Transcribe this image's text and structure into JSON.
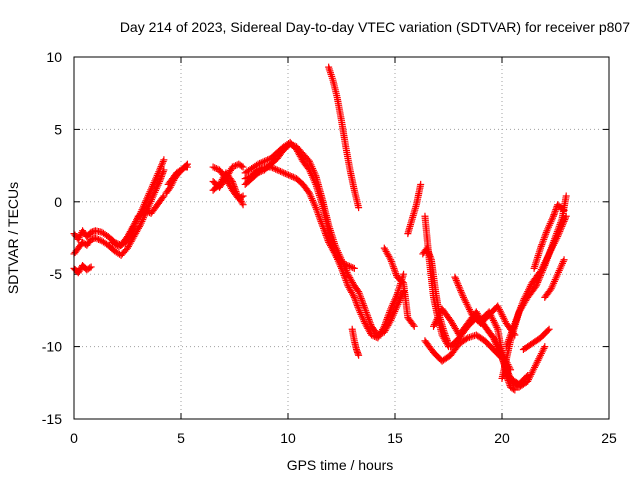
{
  "chart_data": {
    "type": "scatter",
    "title": "Day 214 of 2023, Sidereal Day-to-day VTEC variation (SDTVAR) for receiver p807",
    "xlabel": "GPS time / hours",
    "ylabel": "SDTVAR / TECUs",
    "xlim": [
      0,
      25
    ],
    "ylim": [
      -15,
      10
    ],
    "xticks": [
      0,
      5,
      10,
      15,
      20,
      25
    ],
    "yticks": [
      -15,
      -10,
      -5,
      0,
      5,
      10
    ],
    "grid": true,
    "marker": "+",
    "color": "#ff0000",
    "series": [
      {
        "x": [
          0.0,
          0.2,
          0.4,
          0.6,
          0.8,
          1.0,
          1.3,
          1.6,
          1.9,
          2.2,
          2.5,
          2.8,
          3.1,
          3.4,
          3.7,
          4.0,
          4.2
        ],
        "y": [
          -2.2,
          -2.6,
          -2.0,
          -2.4,
          -2.1,
          -2.0,
          -2.1,
          -2.4,
          -2.8,
          -3.0,
          -2.4,
          -1.6,
          -0.8,
          0.2,
          1.2,
          2.2,
          2.9
        ]
      },
      {
        "x": [
          0.0,
          0.2,
          0.4,
          0.6,
          0.8,
          1.0,
          1.3,
          1.6,
          1.9,
          2.2,
          2.5,
          2.8,
          3.1,
          3.4,
          3.7,
          4.0,
          4.2
        ],
        "y": [
          -3.6,
          -3.2,
          -2.8,
          -3.0,
          -2.6,
          -2.5,
          -2.7,
          -3.0,
          -3.4,
          -3.7,
          -3.2,
          -2.4,
          -1.6,
          -0.6,
          0.4,
          1.4,
          2.2
        ]
      },
      {
        "x": [
          0.0,
          0.2,
          0.4,
          0.6,
          0.8
        ],
        "y": [
          -4.6,
          -4.9,
          -4.4,
          -4.7,
          -4.5
        ]
      },
      {
        "x": [
          1.8,
          2.1,
          2.4,
          2.7,
          3.0,
          3.3,
          3.6,
          3.9,
          4.2
        ],
        "y": [
          -2.8,
          -3.1,
          -2.8,
          -2.0,
          -1.0,
          -0.6,
          -0.8,
          -0.2,
          0.4
        ]
      },
      {
        "x": [
          4.3,
          4.5,
          4.7,
          4.9,
          5.1,
          5.3
        ],
        "y": [
          0.6,
          1.0,
          1.6,
          2.0,
          2.3,
          2.6
        ]
      },
      {
        "x": [
          4.4,
          4.6,
          4.8,
          5.0,
          5.2,
          5.3
        ],
        "y": [
          1.2,
          1.6,
          2.0,
          2.2,
          2.4,
          2.4
        ]
      },
      {
        "x": [
          6.5,
          6.8,
          7.1,
          7.4,
          7.7,
          7.9
        ],
        "y": [
          2.4,
          2.2,
          1.6,
          0.8,
          0.2,
          0.4
        ]
      },
      {
        "x": [
          6.5,
          6.8,
          7.1,
          7.4,
          7.7,
          7.9
        ],
        "y": [
          1.4,
          1.0,
          1.6,
          2.4,
          2.6,
          2.4
        ]
      },
      {
        "x": [
          6.5,
          6.8,
          7.1,
          7.4,
          7.6,
          7.9
        ],
        "y": [
          0.8,
          1.2,
          2.0,
          1.4,
          0.6,
          -0.2
        ]
      },
      {
        "x": [
          8.0,
          8.3,
          8.6,
          8.9,
          9.2,
          9.5,
          9.8,
          10.1,
          10.4,
          10.7,
          11.0,
          11.3,
          11.6,
          11.9,
          12.2,
          12.5,
          12.8,
          13.1,
          13.3,
          13.6,
          13.9,
          14.2,
          14.5,
          14.8,
          15.1,
          15.4
        ],
        "y": [
          1.2,
          1.6,
          2.0,
          2.2,
          2.6,
          3.0,
          3.6,
          4.0,
          3.8,
          3.3,
          2.8,
          1.8,
          0.2,
          -1.6,
          -3.0,
          -4.0,
          -5.0,
          -5.8,
          -6.2,
          -7.4,
          -8.6,
          -9.2,
          -9.0,
          -8.2,
          -7.2,
          -6.2
        ]
      },
      {
        "x": [
          8.0,
          8.3,
          8.6,
          8.9,
          9.2,
          9.5,
          9.8,
          10.1,
          10.4,
          10.7,
          11.0,
          11.3,
          11.6,
          11.9,
          12.2,
          12.5,
          12.8,
          13.1,
          13.3,
          13.6,
          13.9,
          14.2,
          14.5,
          14.8,
          15.1,
          15.4
        ],
        "y": [
          2.0,
          2.3,
          2.6,
          2.8,
          3.0,
          3.4,
          3.8,
          4.1,
          3.6,
          2.8,
          2.2,
          1.2,
          -0.2,
          -2.0,
          -3.6,
          -4.6,
          -5.8,
          -6.6,
          -7.4,
          -8.4,
          -9.2,
          -9.4,
          -8.6,
          -7.4,
          -6.4,
          -5.0
        ]
      },
      {
        "x": [
          8.0,
          8.3,
          8.6,
          8.9,
          9.2,
          9.5,
          9.8,
          10.1,
          10.4,
          10.7,
          11.0,
          11.3,
          11.6,
          11.9,
          12.2,
          12.5,
          12.8,
          13.1
        ],
        "y": [
          1.6,
          1.8,
          2.2,
          2.4,
          2.4,
          2.2,
          2.0,
          1.8,
          1.6,
          1.2,
          0.6,
          -0.4,
          -1.6,
          -2.8,
          -3.6,
          -4.2,
          -4.4,
          -4.6
        ]
      },
      {
        "x": [
          11.9,
          12.1,
          12.3,
          12.5,
          12.7,
          12.9,
          13.1,
          13.3
        ],
        "y": [
          9.3,
          8.4,
          7.2,
          5.6,
          3.8,
          2.2,
          0.8,
          -0.4
        ]
      },
      {
        "x": [
          13.0,
          13.1,
          13.2,
          13.3
        ],
        "y": [
          -8.8,
          -9.6,
          -10.2,
          -10.6
        ]
      },
      {
        "x": [
          14.5,
          14.8,
          15.1,
          15.4,
          15.6,
          15.9
        ],
        "y": [
          -3.2,
          -4.0,
          -5.2,
          -5.6,
          -8.0,
          -8.6
        ]
      },
      {
        "x": [
          15.6,
          15.8,
          16.0,
          16.2
        ],
        "y": [
          -2.2,
          -1.2,
          -0.2,
          1.2
        ]
      },
      {
        "x": [
          16.3,
          16.5,
          16.7,
          16.9,
          17.1,
          17.3,
          17.5
        ],
        "y": [
          -3.6,
          -3.2,
          -4.0,
          -6.2,
          -8.0,
          -9.0,
          -9.8
        ]
      },
      {
        "x": [
          16.4,
          16.6,
          16.8,
          17.0,
          17.2,
          17.5
        ],
        "y": [
          -1.0,
          -4.0,
          -6.6,
          -8.0,
          -9.2,
          -10.0
        ]
      },
      {
        "x": [
          16.4,
          16.8,
          17.2,
          17.6,
          18.0,
          18.4,
          18.8,
          19.2,
          19.6,
          20.0,
          20.4,
          20.8,
          21.2
        ],
        "y": [
          -9.6,
          -10.4,
          -11.0,
          -10.6,
          -9.8,
          -9.4,
          -9.2,
          -9.6,
          -10.2,
          -10.8,
          -12.2,
          -12.6,
          -12.0
        ]
      },
      {
        "x": [
          16.8,
          17.2,
          17.6,
          18.0,
          18.4,
          18.8,
          19.2,
          19.6,
          20.0,
          20.4
        ],
        "y": [
          -8.6,
          -7.4,
          -8.2,
          -9.2,
          -8.4,
          -7.6,
          -8.6,
          -9.4,
          -10.4,
          -11.6
        ]
      },
      {
        "x": [
          17.6,
          18.0,
          18.4,
          18.8,
          19.2,
          19.6,
          20.0,
          20.4,
          20.8,
          21.2,
          21.6,
          22.0
        ],
        "y": [
          -10.0,
          -9.4,
          -8.6,
          -8.0,
          -8.6,
          -9.4,
          -10.8,
          -12.4,
          -12.8,
          -12.4,
          -11.2,
          -10.0
        ]
      },
      {
        "x": [
          17.8,
          18.2,
          18.6,
          19.0,
          19.4,
          19.8,
          20.2,
          20.6
        ],
        "y": [
          -5.2,
          -6.6,
          -7.8,
          -8.4,
          -7.8,
          -7.2,
          -8.4,
          -9.2
        ]
      },
      {
        "x": [
          19.0,
          19.4,
          19.8,
          20.2,
          20.4,
          20.6
        ],
        "y": [
          -8.2,
          -7.6,
          -8.8,
          -12.0,
          -12.8,
          -13.0
        ]
      },
      {
        "x": [
          20.2,
          20.6,
          21.0,
          21.4,
          21.8,
          22.2,
          22.6,
          23.0
        ],
        "y": [
          -10.0,
          -8.4,
          -6.8,
          -5.6,
          -4.8,
          -3.6,
          -2.4,
          -1.0
        ]
      },
      {
        "x": [
          20.0,
          20.4,
          20.8,
          21.2,
          21.6,
          22.0,
          22.4,
          22.8,
          23.0
        ],
        "y": [
          -12.2,
          -9.6,
          -7.6,
          -6.6,
          -5.8,
          -4.4,
          -2.8,
          -1.2,
          0.4
        ]
      },
      {
        "x": [
          21.0,
          21.4,
          21.8,
          22.2
        ],
        "y": [
          -10.2,
          -9.8,
          -9.4,
          -8.8
        ]
      },
      {
        "x": [
          21.5,
          21.8,
          22.1,
          22.4,
          22.6,
          22.9
        ],
        "y": [
          -4.6,
          -3.2,
          -2.0,
          -1.0,
          -0.2,
          -0.6
        ]
      },
      {
        "x": [
          22.0,
          22.3,
          22.6,
          22.9
        ],
        "y": [
          -6.6,
          -6.0,
          -5.0,
          -4.0
        ]
      }
    ]
  }
}
